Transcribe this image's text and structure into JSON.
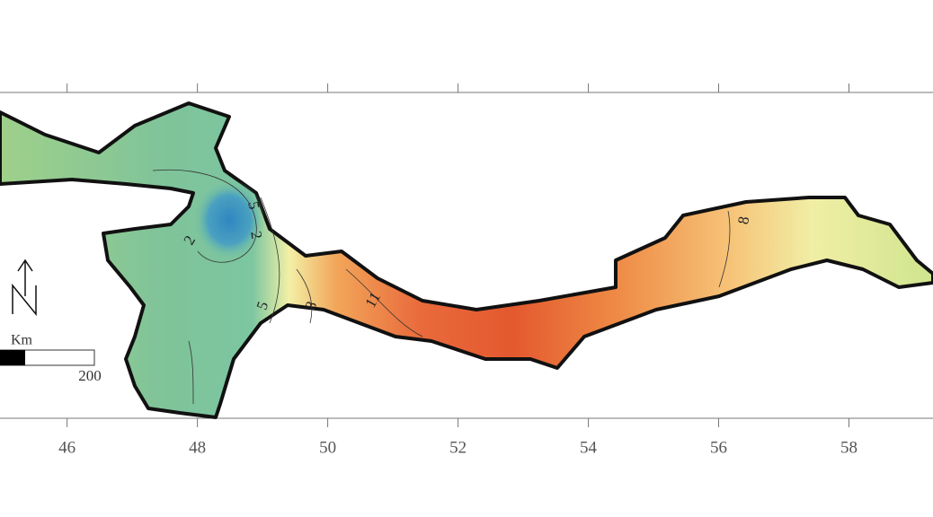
{
  "map": {
    "xlim": [
      44.97,
      59.29
    ],
    "xticks": [
      46,
      48,
      50,
      52,
      54,
      56,
      58
    ],
    "contour_labels": [
      "5",
      "2",
      "2",
      "5",
      "8",
      "11",
      "8"
    ],
    "scale_bar": {
      "unit": "Km",
      "distance": "200"
    }
  }
}
